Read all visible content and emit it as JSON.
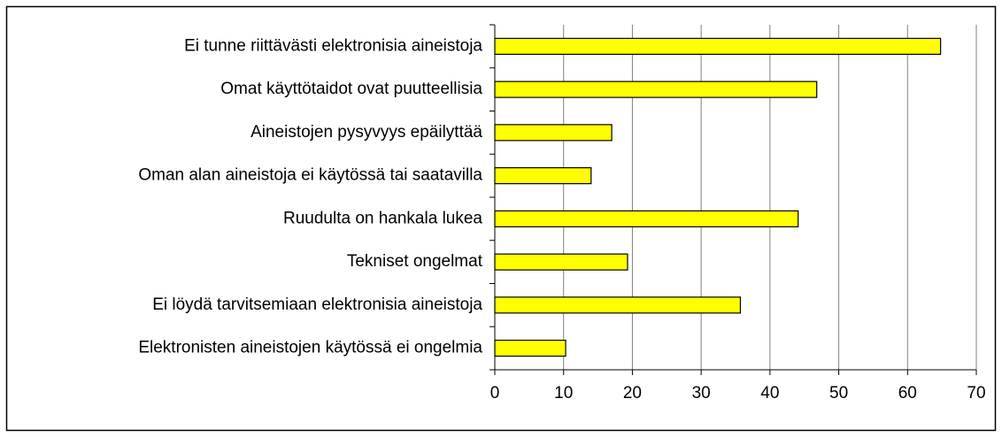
{
  "chart_data": {
    "type": "bar",
    "orientation": "horizontal",
    "categories": [
      "Ei tunne riittävästi elektronisia aineistoja",
      "Omat käyttötaidot ovat puutteellisia",
      "Aineistojen pysyvyys epäilyttää",
      "Oman alan aineistoja ei käytössä tai saatavilla",
      "Ruudulta on hankala lukea",
      "Tekniset ongelmat",
      "Ei löydä tarvitsemiaan elektronisia aineistoja",
      "Elektronisten aineistojen käytössä ei ongelmia"
    ],
    "values": [
      64.8,
      46.8,
      17.0,
      14.0,
      44.1,
      19.3,
      35.7,
      10.3
    ],
    "color": "#ffff00",
    "xlim": [
      0,
      70
    ],
    "xticks": [
      0,
      10,
      20,
      30,
      40,
      50,
      60,
      70
    ],
    "grid": true
  }
}
